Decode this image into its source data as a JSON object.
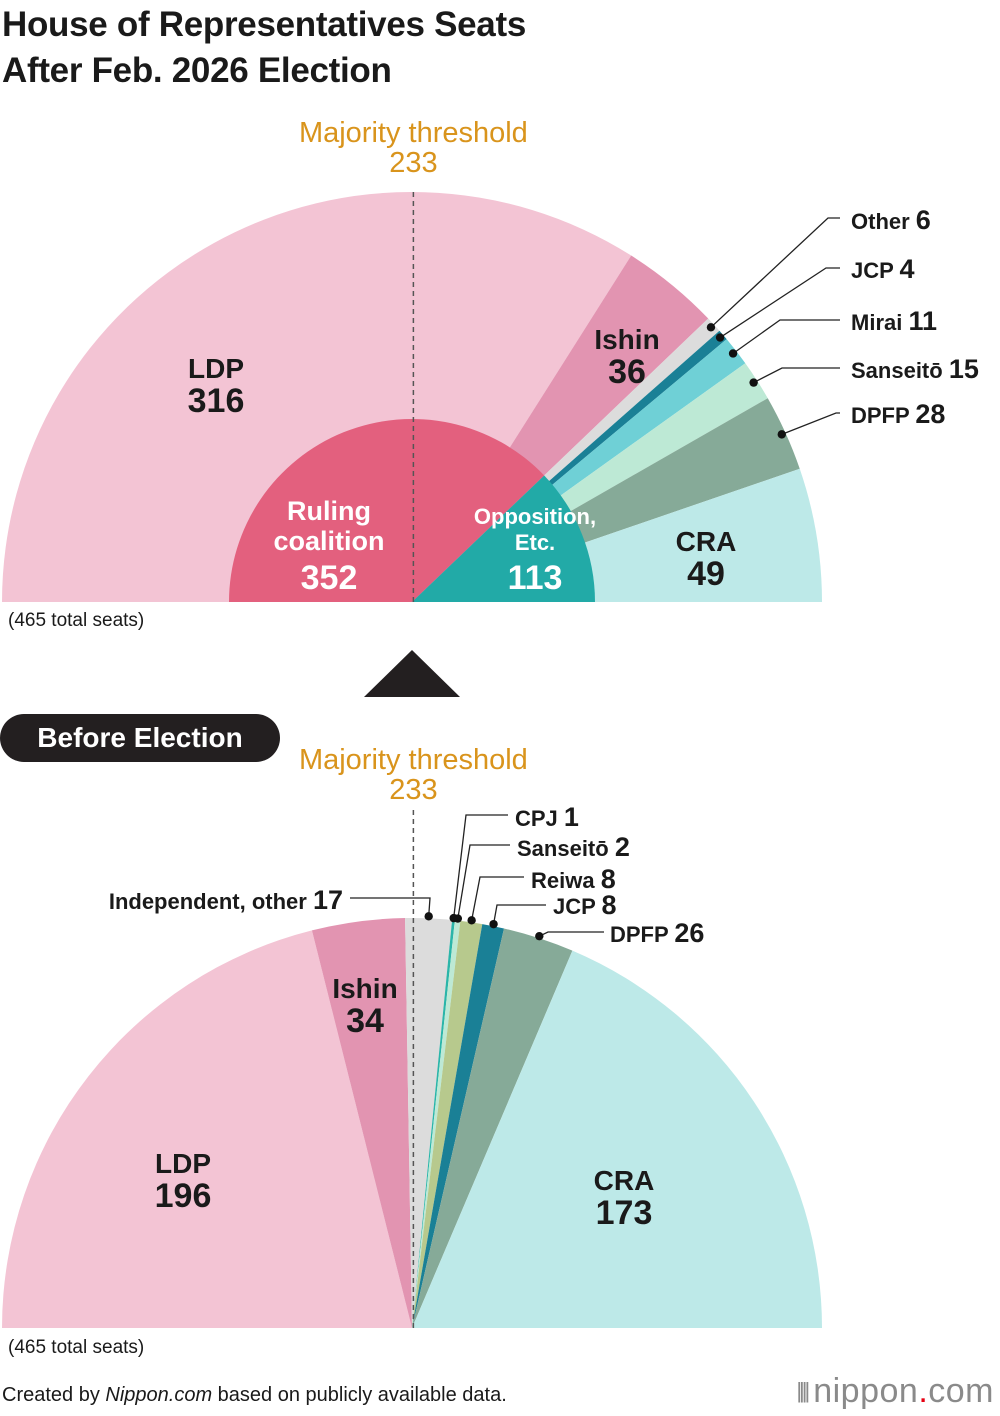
{
  "title_lines": [
    "House of Representatives Seats",
    "After Feb. 2026 Election"
  ],
  "total_note": "(465 total seats)",
  "before_badge": "Before Election",
  "credit": {
    "prefix": "Created by ",
    "site": "Nippon.com",
    "suffix": " based on publicly available data."
  },
  "brand": {
    "bars": "||||",
    "name": "nippon",
    "dot": ".",
    "tld": "com"
  },
  "colors": {
    "ldp": "#f3c4d4",
    "ishin": "#e294b1",
    "other": "#dcdcdc",
    "jcp": "#1a8096",
    "mirai": "#6fd0d6",
    "sanseito": "#bde9d5",
    "dpfp": "#86aa98",
    "cra": "#bde9e8",
    "cpj": "#2bb5a9",
    "reiwa": "#b7c98d",
    "ruling": "#e3607e",
    "opposition": "#22aaa7",
    "threshold": "#d9941c",
    "text": "#1a1a1a"
  },
  "chart_data": [
    {
      "type": "semicircle-pie",
      "name": "after_election",
      "title": "House of Representatives Seats After Feb. 2026 Election",
      "total": 465,
      "majority_label": "Majority threshold",
      "majority_value": 233,
      "slices": [
        {
          "key": "ldp",
          "label": "LDP",
          "value": 316,
          "color": "#f3c4d4"
        },
        {
          "key": "ishin",
          "label": "Ishin",
          "value": 36,
          "color": "#e294b1"
        },
        {
          "key": "other",
          "label": "Other",
          "value": 6,
          "color": "#dcdcdc"
        },
        {
          "key": "jcp",
          "label": "JCP",
          "value": 4,
          "color": "#1a8096"
        },
        {
          "key": "mirai",
          "label": "Mirai",
          "value": 11,
          "color": "#6fd0d6"
        },
        {
          "key": "sanseito",
          "label": "Sanseitō",
          "value": 15,
          "color": "#bde9d5"
        },
        {
          "key": "dpfp",
          "label": "DPFP",
          "value": 28,
          "color": "#86aa98"
        },
        {
          "key": "cra",
          "label": "CRA",
          "value": 49,
          "color": "#bde9e8"
        }
      ],
      "groups": [
        {
          "key": "ruling",
          "label_lines": [
            "Ruling",
            "coalition"
          ],
          "value": 352,
          "color": "#e3607e"
        },
        {
          "key": "opposition",
          "label_lines": [
            "Opposition,",
            "Etc."
          ],
          "value": 113,
          "color": "#22aaa7"
        }
      ]
    },
    {
      "type": "semicircle-pie",
      "name": "before_election",
      "title": "Before Election",
      "total": 465,
      "majority_label": "Majority threshold",
      "majority_value": 233,
      "slices": [
        {
          "key": "ldp",
          "label": "LDP",
          "value": 196,
          "color": "#f3c4d4"
        },
        {
          "key": "ishin",
          "label": "Ishin",
          "value": 34,
          "color": "#e294b1"
        },
        {
          "key": "independent",
          "label": "Independent, other",
          "value": 17,
          "color": "#dcdcdc"
        },
        {
          "key": "cpj",
          "label": "CPJ",
          "value": 1,
          "color": "#2bb5a9"
        },
        {
          "key": "sanseito",
          "label": "Sanseitō",
          "value": 2,
          "color": "#bde9d5"
        },
        {
          "key": "reiwa",
          "label": "Reiwa",
          "value": 8,
          "color": "#b7c98d"
        },
        {
          "key": "jcp",
          "label": "JCP",
          "value": 8,
          "color": "#1a8096"
        },
        {
          "key": "dpfp",
          "label": "DPFP",
          "value": 26,
          "color": "#86aa98"
        },
        {
          "key": "cra",
          "label": "CRA",
          "value": 173,
          "color": "#bde9e8"
        }
      ]
    }
  ]
}
